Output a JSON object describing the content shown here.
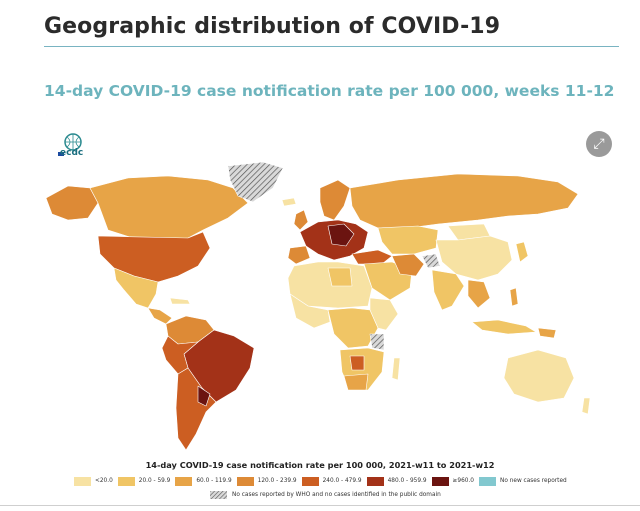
{
  "page": {
    "title": "Geographic distribution of COVID-19",
    "map_title": "14-day COVID-19 case notification rate per 100 000, weeks 11-12"
  },
  "logo": {
    "text": "ecdc"
  },
  "expand_button": {
    "icon": "expand-icon"
  },
  "legend": {
    "title": "14-day COVID-19 case notification rate per 100 000, 2021-w11 to 2021-w12",
    "items": [
      {
        "label": "<20.0",
        "color": "#f7e2a3"
      },
      {
        "label": "20.0 - 59.9",
        "color": "#f0c565"
      },
      {
        "label": "60.0 - 119.9",
        "color": "#e7a447"
      },
      {
        "label": "120.0 - 239.9",
        "color": "#dd8a36"
      },
      {
        "label": "240.0 - 479.9",
        "color": "#cc5e22"
      },
      {
        "label": "480.0 - 959.9",
        "color": "#a33218"
      },
      {
        "label": "≥960.0",
        "color": "#6b1410"
      },
      {
        "label": "No new cases reported",
        "color": "#82c8cf"
      }
    ],
    "no_report_label": "No cases reported by WHO and no cases identified in the public domain"
  }
}
